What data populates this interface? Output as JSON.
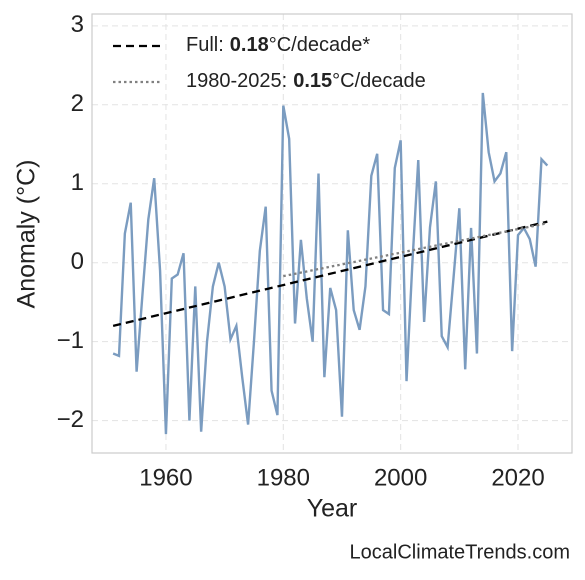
{
  "chart_data": {
    "type": "line",
    "x_label": "Year",
    "y_label": "Anomaly (°C)",
    "watermark": "LocalClimateTrends.com",
    "x": [
      1951,
      1952,
      1953,
      1954,
      1955,
      1956,
      1957,
      1958,
      1959,
      1960,
      1961,
      1962,
      1963,
      1964,
      1965,
      1966,
      1967,
      1968,
      1969,
      1970,
      1971,
      1972,
      1973,
      1974,
      1975,
      1976,
      1977,
      1978,
      1979,
      1980,
      1981,
      1982,
      1983,
      1984,
      1985,
      1986,
      1987,
      1988,
      1989,
      1990,
      1991,
      1992,
      1993,
      1994,
      1995,
      1996,
      1997,
      1998,
      1999,
      2000,
      2001,
      2002,
      2003,
      2004,
      2005,
      2006,
      2007,
      2008,
      2009,
      2010,
      2011,
      2012,
      2013,
      2014,
      2015,
      2016,
      2017,
      2018,
      2019,
      2020,
      2021,
      2022,
      2023,
      2024,
      2025
    ],
    "series": [
      {
        "color": "#7b9cc0",
        "values": [
          -1.15,
          -1.18,
          0.37,
          0.76,
          -1.38,
          -0.4,
          0.55,
          1.07,
          -0.1,
          -2.17,
          -0.2,
          -0.15,
          0.12,
          -2.0,
          -0.3,
          -2.14,
          -1.0,
          -0.3,
          0.0,
          -0.3,
          -0.97,
          -0.8,
          -1.45,
          -2.05,
          -1.0,
          0.15,
          0.71,
          -1.62,
          -1.93,
          1.99,
          1.57,
          -0.77,
          0.29,
          -0.45,
          -1.0,
          1.13,
          -1.45,
          -0.32,
          -0.6,
          -1.95,
          0.41,
          -0.6,
          -0.85,
          -0.3,
          1.1,
          1.38,
          -0.6,
          -0.65,
          1.2,
          1.55,
          -1.5,
          0.0,
          1.3,
          -0.75,
          0.45,
          1.03,
          -0.93,
          -1.07,
          -0.2,
          0.69,
          -1.35,
          0.44,
          -1.15,
          2.15,
          1.4,
          1.03,
          1.13,
          1.4,
          -1.12,
          0.35,
          0.44,
          0.3,
          -0.05,
          1.31,
          1.23
        ]
      },
      {
        "name_prefix": "Full:",
        "rate": 0.18,
        "rate_unit": "°C/decade*",
        "color": "#000000",
        "dash": "dashed",
        "x": [
          1951,
          2025
        ],
        "values": [
          -0.8,
          0.52
        ]
      },
      {
        "name_prefix": "1980-2025:",
        "rate": 0.15,
        "rate_unit": "°C/decade",
        "color": "#808080",
        "dash": "dotted",
        "x": [
          1980,
          2025
        ],
        "values": [
          -0.17,
          0.5
        ]
      }
    ],
    "xlim": [
      1947.4,
      2029.2
    ],
    "ylim": [
      -2.41,
      3.15
    ],
    "xticks": [
      1960,
      1980,
      2000,
      2020
    ],
    "yticks": [
      {
        "value": -2,
        "label": "−2"
      },
      {
        "value": -1,
        "label": "−1"
      },
      0,
      1,
      2,
      3
    ],
    "grid": true,
    "legend": "upper left"
  }
}
